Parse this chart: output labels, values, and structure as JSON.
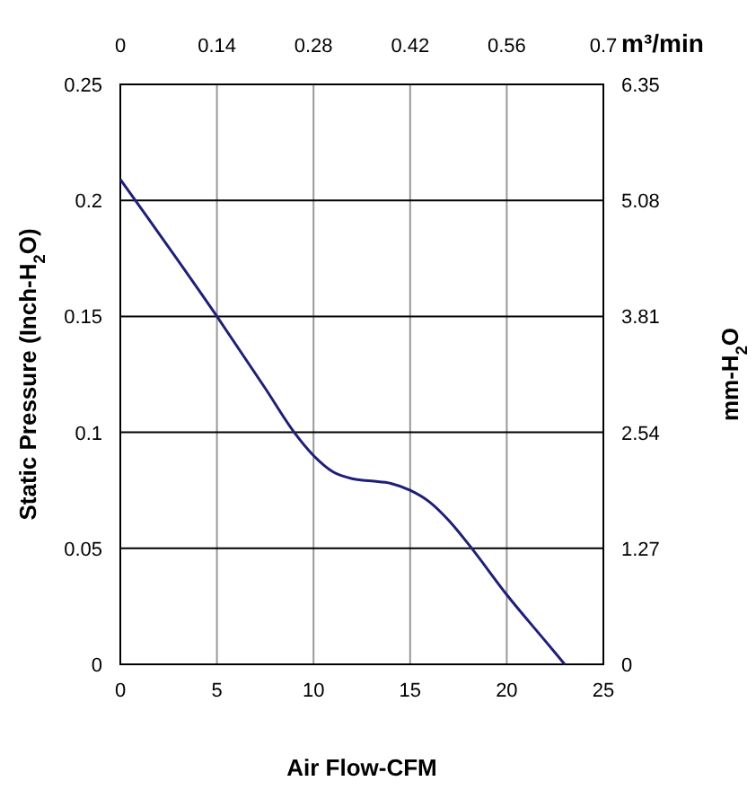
{
  "chart_data": {
    "type": "line",
    "xlabel": "Air Flow-CFM",
    "ylabel": "Static Pressure (Inch-H$_{2}$O)",
    "y2label": "mm-H$_{2}$O",
    "x2label": "m³/min",
    "x": [
      0,
      5,
      7.5,
      9,
      10,
      11,
      12,
      13,
      14,
      15,
      16,
      17,
      18,
      20,
      22,
      23
    ],
    "series": [
      {
        "color": "#1f1f78",
        "values": [
          0.209,
          0.15,
          0.119,
          0.1,
          0.09,
          0.083,
          0.08,
          0.079,
          0.078,
          0.075,
          0.07,
          0.062,
          0.052,
          0.03,
          0.01,
          0
        ]
      }
    ],
    "xlim": [
      0,
      25
    ],
    "xticks": [
      0,
      5,
      10,
      15,
      20,
      25
    ],
    "ylim": [
      0,
      0.25
    ],
    "yticks": [
      0,
      0.05,
      0.1,
      0.15,
      0.2,
      0.25
    ],
    "x2lim": [
      0,
      0.7
    ],
    "x2ticks": [
      0,
      0.14,
      0.28,
      0.42,
      0.56,
      0.7
    ],
    "y2lim": [
      0,
      6.35
    ],
    "y2ticks": [
      0,
      1.27,
      2.54,
      3.81,
      5.08,
      6.35
    ],
    "grid": true,
    "marker": "none",
    "line_style": "solid"
  }
}
